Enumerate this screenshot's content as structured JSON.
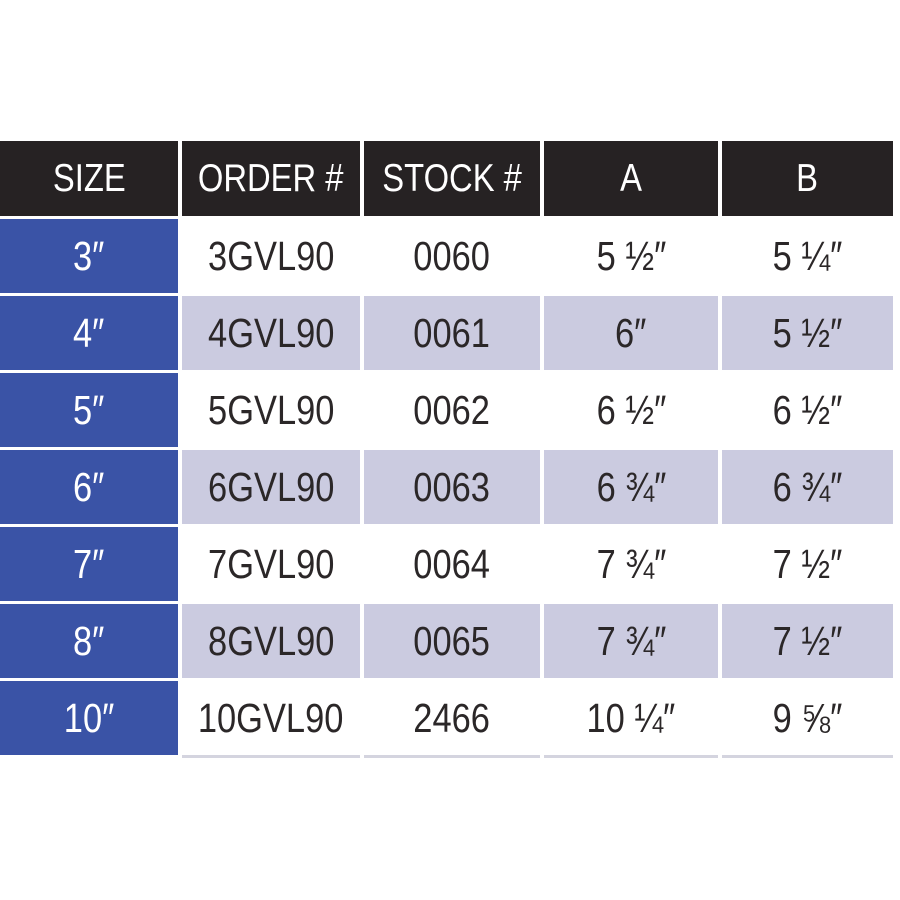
{
  "table": {
    "headers": [
      "SIZE",
      "ORDER #",
      "STOCK #",
      "A",
      "B"
    ],
    "rows": [
      [
        "3″",
        "3GVL90",
        "0060",
        "5 ½″",
        "5 ¼″"
      ],
      [
        "4″",
        "4GVL90",
        "0061",
        "6″",
        "5 ½″"
      ],
      [
        "5″",
        "5GVL90",
        "0062",
        "6 ½″",
        "6 ½″"
      ],
      [
        "6″",
        "6GVL90",
        "0063",
        "6 ¾″",
        "6 ¾″"
      ],
      [
        "7″",
        "7GVL90",
        "0064",
        "7 ¾″",
        "7 ½″"
      ],
      [
        "8″",
        "8GVL90",
        "0065",
        "7 ¾″",
        "7 ½″"
      ],
      [
        "10″",
        "10GVL90",
        "2466",
        "10 ¼″",
        "9 ⅝″"
      ]
    ],
    "colors": {
      "header_bg": "#262223",
      "header_text": "#ffffff",
      "size_column_bg": "#3a53a6",
      "size_column_text": "#ffffff",
      "row_bg": "#ffffff",
      "row_alt_bg": "#cbcbe0",
      "data_text": "#2b2728"
    }
  }
}
